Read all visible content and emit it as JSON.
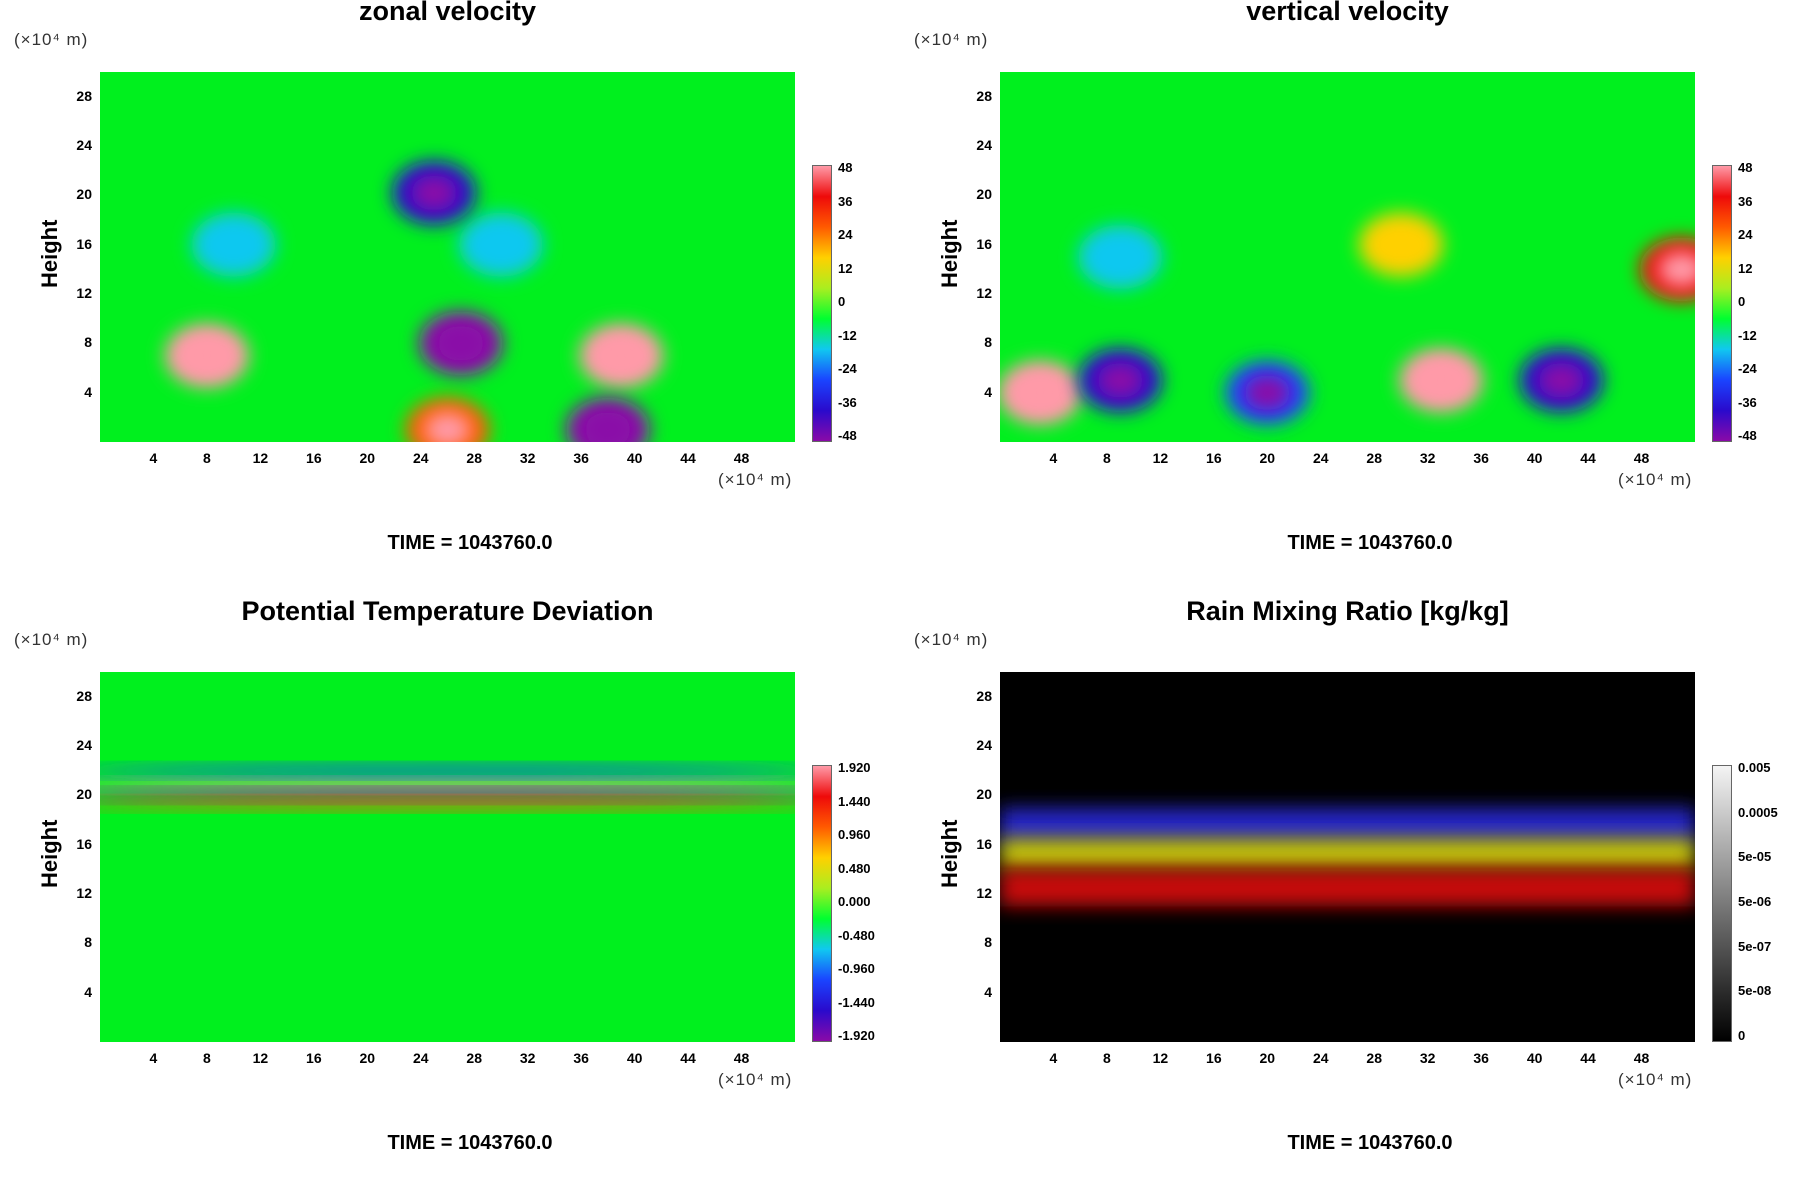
{
  "chart_data": [
    {
      "type": "heatmap",
      "title": "zonal velocity",
      "ylabel": "Height",
      "x_unit": "(×10⁴ m)",
      "y_unit": "(×10⁴ m)",
      "x_ticks": [
        "4",
        "8",
        "12",
        "16",
        "20",
        "24",
        "28",
        "32",
        "36",
        "40",
        "44",
        "48"
      ],
      "y_ticks": [
        "28",
        "24",
        "20",
        "16",
        "12",
        "8",
        "4"
      ],
      "xlim": [
        0,
        52
      ],
      "ylim": [
        0,
        30
      ],
      "colorbar_labels": [
        "48",
        "36",
        "24",
        "12",
        "0",
        "-12",
        "-24",
        "-36",
        "-48"
      ],
      "colorbar_range": [
        -48,
        48
      ],
      "colormap": "rainbow",
      "time_label": "TIME = 1043760.0",
      "features": [
        {
          "x": 8,
          "y": 7,
          "value": 48
        },
        {
          "x": 27,
          "y": 8,
          "value": -44
        },
        {
          "x": 39,
          "y": 7,
          "value": 44
        },
        {
          "x": 38,
          "y": 1,
          "value": -46
        },
        {
          "x": 26,
          "y": 1,
          "value": 30
        },
        {
          "x": 10,
          "y": 16,
          "value": -20
        },
        {
          "x": 30,
          "y": 16,
          "value": -18
        },
        {
          "x": 25,
          "y": 20.2,
          "value": -40
        }
      ]
    },
    {
      "type": "heatmap",
      "title": "vertical velocity",
      "ylabel": "Height",
      "x_unit": "(×10⁴ m)",
      "y_unit": "(×10⁴ m)",
      "x_ticks": [
        "4",
        "8",
        "12",
        "16",
        "20",
        "24",
        "28",
        "32",
        "36",
        "40",
        "44",
        "48"
      ],
      "y_ticks": [
        "28",
        "24",
        "20",
        "16",
        "12",
        "8",
        "4"
      ],
      "xlim": [
        0,
        52
      ],
      "ylim": [
        0,
        30
      ],
      "colorbar_labels": [
        "48",
        "36",
        "24",
        "12",
        "0",
        "-12",
        "-24",
        "-36",
        "-48"
      ],
      "colorbar_range": [
        -48,
        48
      ],
      "colormap": "rainbow",
      "time_label": "TIME = 1043760.0",
      "features": [
        {
          "x": 3,
          "y": 4,
          "value": 44
        },
        {
          "x": 9,
          "y": 5,
          "value": -40
        },
        {
          "x": 33,
          "y": 5,
          "value": 44
        },
        {
          "x": 42,
          "y": 5,
          "value": -42
        },
        {
          "x": 20,
          "y": 4,
          "value": -30
        },
        {
          "x": 51,
          "y": 14,
          "value": 40
        },
        {
          "x": 9,
          "y": 15,
          "value": -20
        },
        {
          "x": 30,
          "y": 16,
          "value": 20
        }
      ]
    },
    {
      "type": "heatmap",
      "title": "Potential Temperature Deviation",
      "ylabel": "Height",
      "x_unit": "(×10⁴ m)",
      "y_unit": "(×10⁴ m)",
      "x_ticks": [
        "4",
        "8",
        "12",
        "16",
        "20",
        "24",
        "28",
        "32",
        "36",
        "40",
        "44",
        "48"
      ],
      "y_ticks": [
        "28",
        "24",
        "20",
        "16",
        "12",
        "8",
        "4"
      ],
      "xlim": [
        0,
        52
      ],
      "ylim": [
        0,
        30
      ],
      "colorbar_labels": [
        "1.920",
        "1.440",
        "0.960",
        "0.480",
        "0.000",
        "-0.480",
        "-0.960",
        "-1.440",
        "-1.920"
      ],
      "colorbar_range": [
        -1.92,
        1.92
      ],
      "colormap": "rainbow",
      "time_label": "TIME = 1043760.0",
      "features": [
        {
          "x": 26,
          "y": 20.8,
          "value": 1.9
        },
        {
          "x": 26,
          "y": 20.0,
          "value": -1.9
        },
        {
          "x": 26,
          "y": 22.0,
          "value": -1.2
        },
        {
          "x": 26,
          "y": 19.3,
          "value": 1.2
        }
      ]
    },
    {
      "type": "heatmap",
      "title": "Rain Mixing Ratio [kg/kg]",
      "ylabel": "Height",
      "x_unit": "(×10⁴ m)",
      "y_unit": "(×10⁴ m)",
      "x_ticks": [
        "4",
        "8",
        "12",
        "16",
        "20",
        "24",
        "28",
        "32",
        "36",
        "40",
        "44",
        "48"
      ],
      "y_ticks": [
        "28",
        "24",
        "20",
        "16",
        "12",
        "8",
        "4"
      ],
      "xlim": [
        0,
        52
      ],
      "ylim": [
        0,
        30
      ],
      "colorbar_labels": [
        "0.005",
        "0.0005",
        "5e-05",
        "5e-06",
        "5e-07",
        "5e-08",
        "0"
      ],
      "colorbar_scale": "log",
      "colormap": "grayscale",
      "time_label": "TIME = 1043760.0",
      "layers": [
        {
          "y_range": [
            16,
            19
          ],
          "color": "blue"
        },
        {
          "y_range": [
            14,
            16.5
          ],
          "color": "yellow"
        },
        {
          "y_range": [
            11,
            14
          ],
          "color": "red"
        }
      ]
    }
  ],
  "colors": {
    "rainbow": [
      "#8a0aa8",
      "#2a0acc",
      "#1a44ff",
      "#10c8f0",
      "#00ff30",
      "#aaee20",
      "#ffd000",
      "#ff5a00",
      "#ee0a0a",
      "#ff9aa8"
    ],
    "background_green": "#00f01e",
    "rain_background": "#000000"
  }
}
